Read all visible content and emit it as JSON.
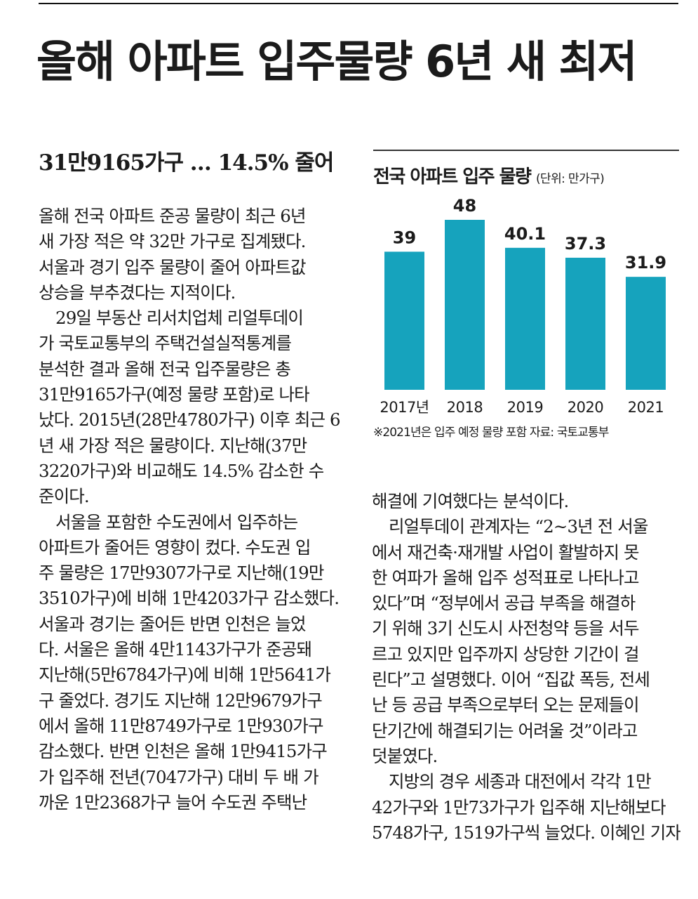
{
  "headline": "올해 아파트 입주물량 6년 새 최저",
  "subhead": "31만9165가구 … 14.5% 줄어",
  "left_column": [
    "올해 전국 아파트 준공 물량이 최근 6년",
    "새 가장 적은 약 32만 가구로 집계됐다.",
    "서울과 경기 입주 물량이 줄어 아파트값",
    "상승을 부추겼다는 지적이다.",
    "29일 부동산 리서치업체 리얼투데이",
    "가 국토교통부의 주택건설실적통계를",
    "분석한 결과 올해 전국 입주물량은 총",
    "31만9165가구(예정 물량 포함)로 나타",
    "났다. 2015년(28만4780가구) 이후 최근 6",
    "년 새 가장 적은 물량이다. 지난해(37만",
    "3220가구)와 비교해도 14.5% 감소한 수",
    "준이다.",
    "서울을 포함한 수도권에서 입주하는",
    "아파트가 줄어든 영향이 컸다. 수도권 입",
    "주 물량은 17만9307가구로 지난해(19만",
    "3510가구)에 비해 1만4203가구 감소했다.",
    "서울과 경기는 줄어든 반면 인천은 늘었",
    "다. 서울은 올해 4만1143가구가 준공돼",
    "지난해(5만6784가구)에 비해 1만5641가",
    "구 줄었다. 경기도 지난해 12만9679가구",
    "에서 올해 11만8749가구로 1만930가구",
    "감소했다. 반면 인천은 올해 1만9415가구",
    "가 입주해 전년(7047가구) 대비 두 배 가",
    "까운 1만2368가구 늘어 수도권 주택난"
  ],
  "right_column": [
    "해결에 기여했다는 분석이다.",
    "리얼투데이 관계자는 “2~3년 전 서울",
    "에서 재건축·재개발 사업이 활발하지 못",
    "한 여파가 올해 입주 성적표로 나타나고",
    "있다”며 “정부에서 공급 부족을 해결하",
    "기 위해 3기 신도시 사전청약 등을 서두",
    "르고 있지만 입주까지 상당한 기간이 걸",
    "린다”고 설명했다. 이어 “집값 폭등, 전세",
    "난 등 공급 부족으로부터 오는 문제들이",
    "단기간에 해결되기는 어려울 것”이라고",
    "덧붙였다.",
    "지방의 경우 세종과 대전에서 각각 1만",
    "42가구와 1만73가구가 입주해 지난해보다",
    "5748가구, 1519가구씩 늘었다.",
    "이혜인 기자"
  ],
  "chart": {
    "title": "전국 아파트 입주 물량",
    "unit": "(단위: 만가구)",
    "note": "※2021년은 입주 예정 물량 포함 자료: 국토교통부"
  },
  "chart_data": {
    "type": "bar",
    "title": "전국 아파트 입주 물량",
    "unit": "만가구",
    "categories": [
      "2017년",
      "2018",
      "2019",
      "2020",
      "2021"
    ],
    "values": [
      39,
      48,
      40.1,
      37.3,
      31.9
    ],
    "value_labels": [
      "39",
      "48",
      "40.1",
      "37.3",
      "31.9"
    ],
    "ylim": [
      0,
      48
    ],
    "bar_color": "#16a3bd",
    "grid": false,
    "legend": "none"
  }
}
